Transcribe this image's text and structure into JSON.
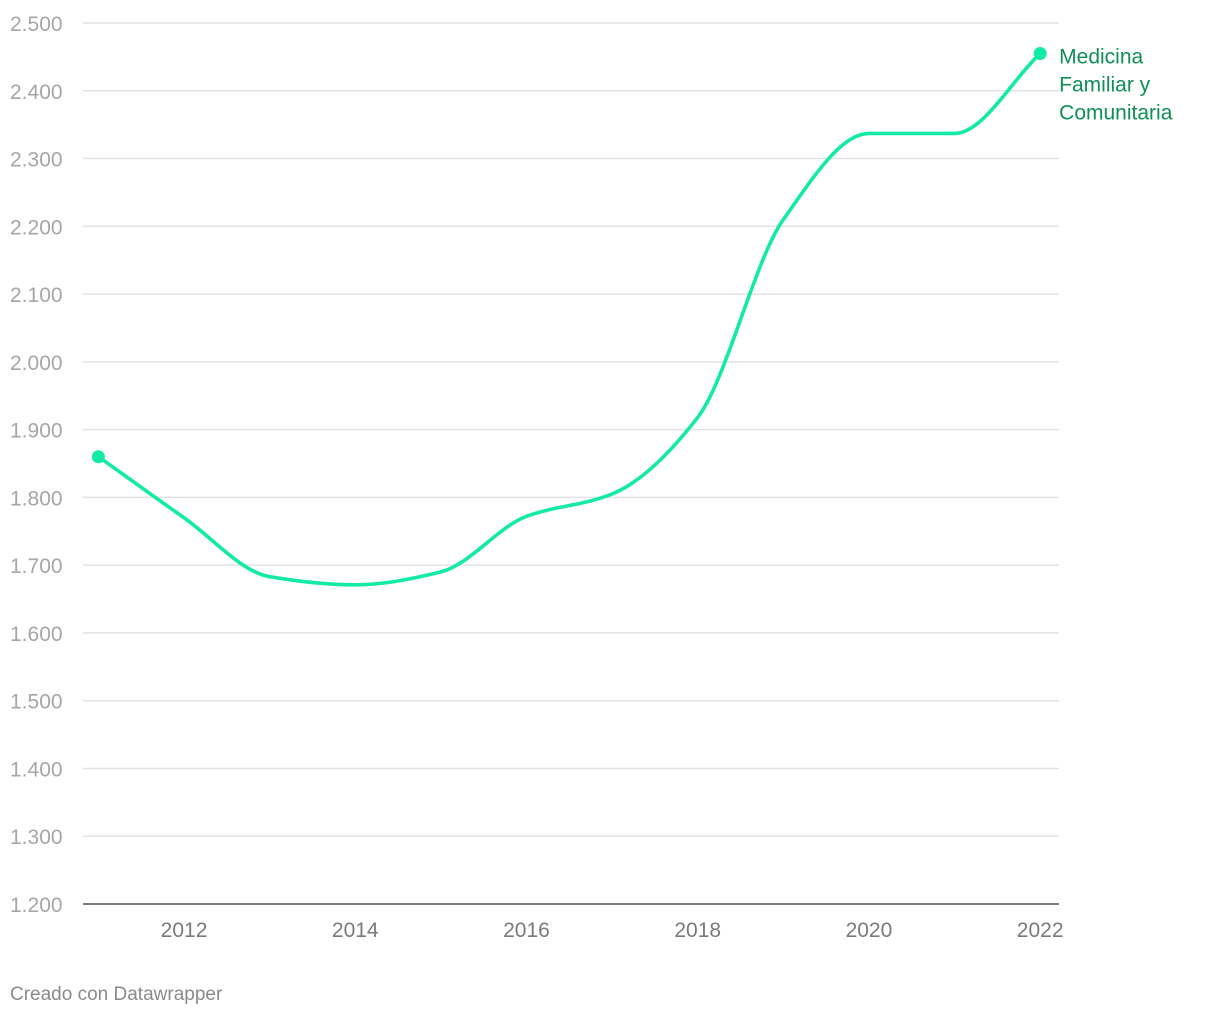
{
  "chart_data": {
    "type": "line",
    "title": "",
    "xlabel": "",
    "ylabel": "",
    "x": [
      2011,
      2012,
      2013,
      2014,
      2015,
      2016,
      2017,
      2018,
      2019,
      2020,
      2021,
      2022
    ],
    "x_ticks": [
      2012,
      2014,
      2016,
      2018,
      2020,
      2022
    ],
    "x_tick_labels": [
      "2012",
      "2014",
      "2016",
      "2018",
      "2020",
      "2022"
    ],
    "y_ticks": [
      1200,
      1300,
      1400,
      1500,
      1600,
      1700,
      1800,
      1900,
      2000,
      2100,
      2200,
      2300,
      2400,
      2500
    ],
    "y_tick_labels": [
      "1.200",
      "1.300",
      "1.400",
      "1.500",
      "1.600",
      "1.700",
      "1.800",
      "1.900",
      "2.000",
      "2.100",
      "2.200",
      "2.300",
      "2.400",
      "2.500"
    ],
    "xlim": [
      2010.82,
      2022.22
    ],
    "ylim": [
      1200,
      2500
    ],
    "grid": true,
    "series": [
      {
        "name": "Medicina Familiar y Comunitaria",
        "label_lines": [
          "Medicina",
          "Familiar y",
          "Comunitaria"
        ],
        "color": "#12eaa6",
        "label_color": "#0f8f57",
        "values": [
          1860,
          1770,
          1683,
          1671,
          1690,
          1772,
          1805,
          1918,
          2210,
          2337,
          2337,
          2455
        ]
      }
    ]
  },
  "footer": {
    "credit": "Creado con Datawrapper"
  },
  "colors": {
    "grid": "#e2e2e2",
    "baseline": "#333333"
  }
}
